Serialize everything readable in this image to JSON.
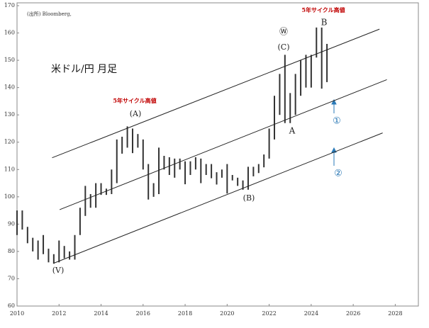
{
  "chart_data": {
    "type": "range-bar",
    "x": [
      2010.0,
      2010.25,
      2010.5,
      2010.75,
      2011.0,
      2011.25,
      2011.5,
      2011.75,
      2012.0,
      2012.25,
      2012.5,
      2012.75,
      2013.0,
      2013.25,
      2013.5,
      2013.75,
      2014.0,
      2014.25,
      2014.5,
      2014.75,
      2015.0,
      2015.25,
      2015.5,
      2015.75,
      2016.0,
      2016.25,
      2016.5,
      2016.75,
      2017.0,
      2017.25,
      2017.5,
      2017.75,
      2018.0,
      2018.25,
      2018.5,
      2018.75,
      2019.0,
      2019.25,
      2019.5,
      2019.75,
      2020.0,
      2020.25,
      2020.5,
      2020.75,
      2021.0,
      2021.25,
      2021.5,
      2021.75,
      2022.0,
      2022.25,
      2022.5,
      2022.75,
      2023.0,
      2023.25,
      2023.5,
      2023.75,
      2024.0,
      2024.25,
      2024.5,
      2024.75
    ],
    "high": [
      95,
      95,
      89,
      85,
      84,
      86,
      81,
      79,
      84,
      82,
      80,
      86,
      96,
      104,
      101,
      105,
      105,
      103,
      110,
      121,
      122,
      125.8,
      125,
      123,
      121,
      112,
      105,
      118,
      115,
      114.5,
      114,
      114,
      113,
      113,
      114.5,
      114,
      112,
      112,
      109,
      110,
      112,
      108,
      107,
      106,
      111,
      111,
      112,
      115.5,
      125,
      137,
      145,
      152,
      138,
      145,
      150,
      152,
      152,
      162,
      162,
      156
    ],
    "low": [
      86,
      88,
      83,
      80,
      77,
      79,
      76,
      75.5,
      76,
      77.5,
      77,
      77,
      86,
      93,
      96,
      96,
      100.7,
      100.7,
      101,
      105,
      115.8,
      118,
      116,
      118,
      110,
      99,
      100,
      101,
      110,
      108,
      107,
      110,
      104.6,
      108,
      110,
      105,
      108,
      106.8,
      104.5,
      107,
      101.2,
      106,
      104,
      102.6,
      102.6,
      107.5,
      108.7,
      110.8,
      114,
      121,
      130,
      127,
      127,
      130,
      137,
      140,
      140,
      151,
      139.6,
      142
    ],
    "color": "#333333",
    "channel_lines": [
      {
        "x": [
          2011.67,
          2027.25
        ],
        "y": [
          114.3,
          161.4
        ]
      },
      {
        "x": [
          2012.03,
          2027.6
        ],
        "y": [
          95.3,
          142.9
        ]
      },
      {
        "x": [
          2011.75,
          2027.4
        ],
        "y": [
          75.7,
          123.4
        ]
      }
    ],
    "xlim": [
      2010,
      2029.1
    ],
    "xticks": [
      2010,
      2012,
      2014,
      2016,
      2018,
      2020,
      2022,
      2024,
      2026,
      2028
    ],
    "ylim": [
      60,
      170
    ],
    "yticks": [
      60,
      70,
      80,
      90,
      100,
      110,
      120,
      130,
      140,
      150,
      160,
      170
    ],
    "annotations": [
      "(出所) Bloomberg,",
      "米ドル/円 月足",
      "5年サイクル高値",
      "(A)",
      "5年サイクル高値",
      "Ⓦ",
      "(C)",
      "B",
      "A",
      "(B)",
      "(V)",
      "①",
      "②"
    ]
  }
}
